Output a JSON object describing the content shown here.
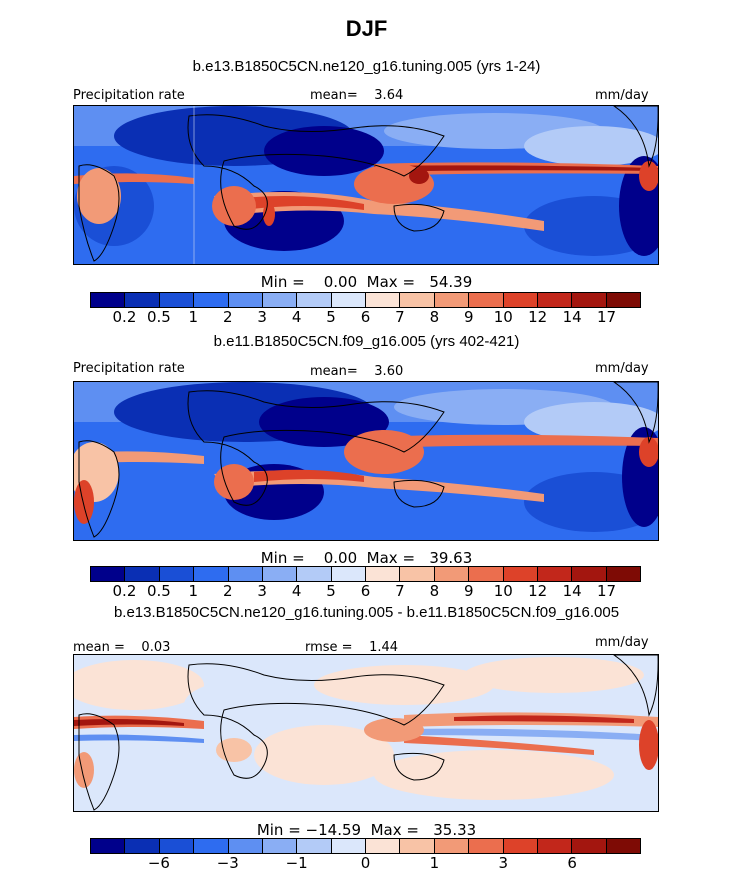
{
  "title": "DJF",
  "panels": [
    {
      "subtitle": "b.e13.B1850C5CN.ne120_g16.tuning.005 (yrs 1-24)",
      "left_label": "Precipitation rate",
      "center_label": "mean=    3.64",
      "right_label": "mm/day",
      "stats": "Min =    0.00  Max =   54.39",
      "colorbar_ticks": [
        "0.2",
        "0.5",
        "1",
        "2",
        "3",
        "4",
        "5",
        "6",
        "7",
        "8",
        "9",
        "10",
        "12",
        "14",
        "17"
      ]
    },
    {
      "subtitle": "b.e11.B1850C5CN.f09_g16.005 (yrs 402-421)",
      "left_label": "Precipitation rate",
      "center_label": "mean=    3.60",
      "right_label": "mm/day",
      "stats": "Min =    0.00  Max =   39.63",
      "colorbar_ticks": [
        "0.2",
        "0.5",
        "1",
        "2",
        "3",
        "4",
        "5",
        "6",
        "7",
        "8",
        "9",
        "10",
        "12",
        "14",
        "17"
      ]
    },
    {
      "subtitle": "b.e13.B1850C5CN.ne120_g16.tuning.005 - b.e11.B1850C5CN.f09_g16.005",
      "left_label": "mean =    0.03",
      "center_label": "rmse =    1.44",
      "right_label": "mm/day",
      "stats": "Min = −14.59  Max =   35.33",
      "colorbar_ticks": [
        "−6",
        "−3",
        "−1",
        "0",
        "1",
        "3",
        "6"
      ]
    }
  ],
  "colors": {
    "sequential": [
      "#00008b",
      "#0a2fb4",
      "#1a4fd6",
      "#2e6cf0",
      "#5e8ff2",
      "#8aaef4",
      "#b3cbf7",
      "#dbe7fb",
      "#fbe3d6",
      "#f8c3a6",
      "#f29a77",
      "#eb6e4e",
      "#dd4229",
      "#c2271b",
      "#a3160f",
      "#7e0b05"
    ],
    "diverging": [
      "#00008b",
      "#0a2fb4",
      "#1a4fd6",
      "#2e6cf0",
      "#5e8ff2",
      "#8aaef4",
      "#b3cbf7",
      "#dbe7fb",
      "#fbe3d6",
      "#f8c3a6",
      "#f29a77",
      "#eb6e4e",
      "#dd4229",
      "#c2271b",
      "#a3160f",
      "#7e0b05"
    ]
  }
}
